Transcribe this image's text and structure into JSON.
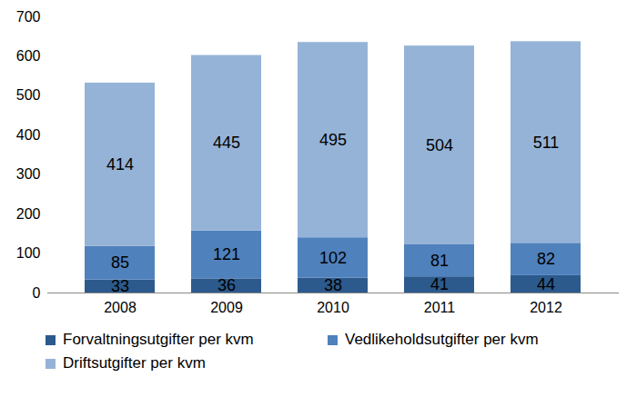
{
  "chart_data": {
    "type": "bar",
    "stacked": true,
    "data_labels": true,
    "grid": false,
    "legend": "bottom",
    "categories": [
      "2008",
      "2009",
      "2010",
      "2011",
      "2012"
    ],
    "series": [
      {
        "name": "Forvaltningsutgifter per kvm",
        "color": "#2c5a8c",
        "values": [
          33,
          36,
          38,
          41,
          44
        ]
      },
      {
        "name": "Vedlikeholdsutgifter per kvm",
        "color": "#4f81bd",
        "values": [
          85,
          121,
          102,
          81,
          82
        ]
      },
      {
        "name": "Driftsutgifter per kvm",
        "color": "#95b3d7",
        "values": [
          414,
          445,
          495,
          504,
          511
        ]
      }
    ],
    "ylim": [
      0,
      700
    ],
    "yticks": [
      0,
      100,
      200,
      300,
      400,
      500,
      600,
      700
    ]
  }
}
